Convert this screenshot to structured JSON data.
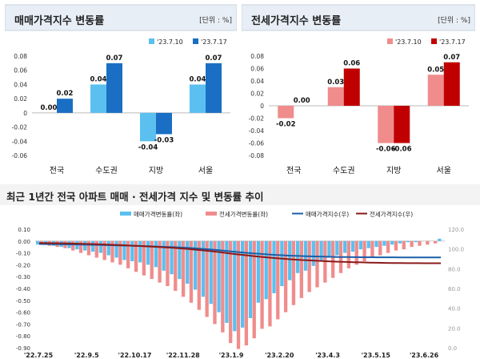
{
  "top_left": {
    "title": "매매가격지수 변동률",
    "unit": "[단위 : %]",
    "chart_data": {
      "type": "bar",
      "categories": [
        "전국",
        "수도권",
        "지방",
        "서울"
      ],
      "series": [
        {
          "name": "'23.7.10",
          "values": [
            0.0,
            0.04,
            -0.04,
            0.04
          ],
          "color": "#5bc0f0"
        },
        {
          "name": "'23.7.17",
          "values": [
            0.02,
            0.07,
            -0.03,
            0.07
          ],
          "color": "#1a6fc4"
        }
      ],
      "value_labels": [
        [
          "0.00",
          "0.04",
          "-0.04",
          "0.04"
        ],
        [
          "0.02",
          "0.07",
          "-0.03",
          "0.07"
        ]
      ],
      "ylim": [
        -0.06,
        0.08
      ],
      "yticks": [
        "0.08",
        "0.06",
        "0.04",
        "0.02",
        "0",
        "-0.02",
        "-0.04",
        "-0.06"
      ]
    }
  },
  "top_right": {
    "title": "전세가격지수 변동률",
    "unit": "[단위 : %]",
    "chart_data": {
      "type": "bar",
      "categories": [
        "전국",
        "수도권",
        "지방",
        "서울"
      ],
      "series": [
        {
          "name": "'23.7.10",
          "values": [
            -0.02,
            0.03,
            -0.06,
            0.05
          ],
          "color": "#f08c8c"
        },
        {
          "name": "'23.7.17",
          "values": [
            0.0,
            0.06,
            -0.06,
            0.07
          ],
          "color": "#c00000"
        }
      ],
      "value_labels": [
        [
          "-0.02",
          "0.03",
          "-0.06",
          "0.05"
        ],
        [
          "0.00",
          "0.06",
          "-0.06",
          "0.07"
        ]
      ],
      "ylim": [
        -0.08,
        0.08
      ],
      "yticks": [
        "0.08",
        "0.06",
        "0.04",
        "0.02",
        "0",
        "-0.02",
        "-0.04",
        "-0.06",
        "-0.08"
      ]
    }
  },
  "bottom": {
    "title": "최근 1년간 전국 아파트 매매 · 전세가격 지수 및 변동률 추이",
    "legend": [
      "매매가격변동률(좌)",
      "전세가격변동률(좌)",
      "매매가격지수(우)",
      "전세가격지수(우)"
    ],
    "colors": {
      "sale_rate": "#5bc0f0",
      "jeonse_rate": "#f08c8c",
      "sale_index": "#1a5fa8",
      "jeonse_index": "#8b1a1a"
    },
    "chart_data": {
      "type": "bar",
      "x_ticks": [
        "'22.7.25",
        "'22.9.5",
        "'22.10.17",
        "'22.11.28",
        "'23.1.9",
        "'23.2.20",
        "'23.4.3",
        "'23.5.15",
        "'23.6.26"
      ],
      "ylim_left": [
        -0.9,
        0.1
      ],
      "ylim_right": [
        0.0,
        120.0
      ],
      "left_ticks": [
        "0.10",
        "0.00",
        "-0.10",
        "-0.20",
        "-0.30",
        "-0.40",
        "-0.50",
        "-0.60",
        "-0.70",
        "-0.80",
        "-0.90"
      ],
      "right_ticks": [
        "120.0",
        "100.0",
        "80.0",
        "60.0",
        "40.0",
        "20.0",
        "0.0"
      ],
      "sale_rate": [
        -0.03,
        -0.03,
        -0.04,
        -0.05,
        -0.06,
        -0.07,
        -0.08,
        -0.09,
        -0.1,
        -0.12,
        -0.14,
        -0.16,
        -0.17,
        -0.18,
        -0.2,
        -0.22,
        -0.25,
        -0.28,
        -0.32,
        -0.36,
        -0.41,
        -0.47,
        -0.53,
        -0.6,
        -0.69,
        -0.76,
        -0.73,
        -0.65,
        -0.52,
        -0.49,
        -0.44,
        -0.38,
        -0.33,
        -0.27,
        -0.25,
        -0.21,
        -0.17,
        -0.14,
        -0.12,
        -0.1,
        -0.09,
        -0.07,
        -0.06,
        -0.05,
        -0.04,
        -0.03,
        -0.02,
        -0.01,
        -0.01,
        0.0,
        0.0,
        0.02
      ],
      "jeonse_rate": [
        -0.03,
        -0.04,
        -0.05,
        -0.06,
        -0.08,
        -0.1,
        -0.12,
        -0.14,
        -0.16,
        -0.18,
        -0.2,
        -0.23,
        -0.26,
        -0.29,
        -0.32,
        -0.35,
        -0.38,
        -0.42,
        -0.47,
        -0.52,
        -0.58,
        -0.64,
        -0.7,
        -0.77,
        -0.86,
        -0.91,
        -0.88,
        -0.82,
        -0.74,
        -0.72,
        -0.66,
        -0.6,
        -0.54,
        -0.48,
        -0.43,
        -0.39,
        -0.35,
        -0.31,
        -0.27,
        -0.23,
        -0.2,
        -0.17,
        -0.14,
        -0.12,
        -0.1,
        -0.08,
        -0.07,
        -0.05,
        -0.04,
        -0.03,
        -0.02,
        0.0
      ],
      "sale_index": [
        105.0,
        104.9,
        104.8,
        104.7,
        104.6,
        104.5,
        104.3,
        104.2,
        104.0,
        103.8,
        103.6,
        103.4,
        103.2,
        103.0,
        102.7,
        102.4,
        102.1,
        101.8,
        101.4,
        101.0,
        100.5,
        99.9,
        99.3,
        98.6,
        97.8,
        97.0,
        96.3,
        95.6,
        95.0,
        94.5,
        94.0,
        93.6,
        93.2,
        92.9,
        92.6,
        92.4,
        92.2,
        92.0,
        91.9,
        91.8,
        91.7,
        91.6,
        91.6,
        91.5,
        91.5,
        91.5,
        91.4,
        91.4,
        91.4,
        91.4,
        91.4,
        91.4
      ],
      "jeonse_index": [
        106.0,
        105.9,
        105.8,
        105.7,
        105.5,
        105.3,
        105.1,
        104.9,
        104.6,
        104.3,
        104.0,
        103.7,
        103.3,
        102.9,
        102.5,
        102.1,
        101.6,
        101.1,
        100.5,
        99.9,
        99.2,
        98.4,
        97.6,
        96.7,
        95.7,
        94.7,
        93.8,
        92.9,
        92.1,
        91.4,
        90.7,
        90.1,
        89.5,
        89.0,
        88.5,
        88.1,
        87.7,
        87.4,
        87.1,
        86.8,
        86.6,
        86.4,
        86.2,
        86.0,
        85.9,
        85.8,
        85.7,
        85.6,
        85.6,
        85.5,
        85.5,
        85.5
      ]
    }
  }
}
